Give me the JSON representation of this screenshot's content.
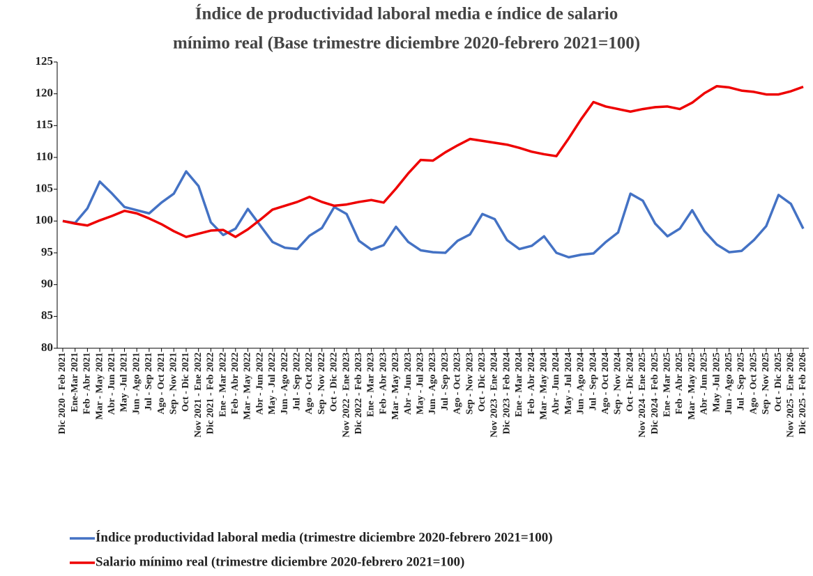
{
  "chart_data": {
    "type": "line",
    "title": [
      "Índice de productividad laboral media e índice de salario",
      "mínimo real (Base trimestre diciembre 2020-febrero 2021=100)"
    ],
    "categories": [
      "Dic 2020 - Feb 2021",
      "Ene-Mar 2021",
      "Feb - Abr 2021",
      "Mar - May 2021",
      "Abr - Jun 2021",
      "May -Jul 2021",
      "Jun - Ago 2021",
      "Jul - Sep 2021",
      "Ago - Oct 2021",
      "Sep - Nov 2021",
      "Oct - Dic 2021",
      "Nov 2021 - Ene 2022",
      "Dic 2021 - Feb 2022",
      "Ene - Mar 2022",
      "Feb - Abr 2022",
      "Mar - May 2022",
      "Abr - Jun 2022",
      "May - Jul 2022",
      "Jun - Ago 2022",
      "Jul - Sep 2022",
      "Ago - Oct 2022",
      "Sep - Nov 2022",
      "Oct - Dic 2022",
      "Nov 2022 - Ene 2023",
      "Dic 2022 - Feb 2023",
      "Ene - Mar 2023",
      "Feb - Abr 2023",
      "Mar - May 2023",
      "Abr - Jun 2023",
      "May - Jul 2023",
      "Jun - Ago 2023",
      "Jul - Sep 2023",
      "Ago - Oct 2023",
      "Sep - Nov 2023",
      "Oct - Dic 2023",
      "Nov 2023 - Ene 2024",
      "Dic 2023 - Feb 2024",
      "Ene - Mar 2024",
      "Feb - Abr 2024",
      "Mar - May 2024",
      "Abr - Jun 2024",
      "May - Jul 2024",
      "Jun - Ago 2024",
      "Jul - Sep 2024",
      "Ago - Oct 2024",
      "Sep - Nov 2024",
      "Oct - Dic 2024",
      "Nov 2024 - Ene 2025",
      "Dic 2024 - Feb 2025",
      "Ene - Mar 2025",
      "Feb - Abr 2025",
      "Mar - May 2025",
      "Abr - Jun 2025",
      "May -Jul 2025",
      "Jun - Ago 2025",
      "Jul - Sep 2025",
      "Ago - Oct 2025",
      "Sep - Nov 2025",
      "Oct - Dic 2025",
      "Nov 2025 - Ene 2026",
      "Dic 2025 - Feb 2026"
    ],
    "series": [
      {
        "name": "Índice productividad laboral media (trimestre diciembre 2020-febrero 2021=100)",
        "color": "#4472c4",
        "values": [
          100,
          99.7,
          102,
          106.2,
          104.3,
          102.2,
          101.7,
          101.2,
          102.9,
          104.3,
          107.8,
          105.5,
          99.8,
          97.8,
          98.8,
          101.9,
          99.3,
          96.7,
          95.8,
          95.6,
          97.7,
          98.9,
          102.2,
          101.1,
          96.9,
          95.5,
          96.2,
          99.1,
          96.7,
          95.4,
          95.1,
          95.0,
          96.9,
          97.9,
          101.1,
          100.3,
          97.0,
          95.6,
          96.1,
          97.6,
          95.0,
          94.3,
          94.7,
          94.9,
          96.7,
          98.2,
          104.3,
          103.2,
          99.6,
          97.6,
          98.8,
          101.7,
          98.4,
          96.3,
          95.1,
          95.3,
          97.0,
          99.2,
          104.1,
          102.7,
          98.8
        ]
      },
      {
        "name": "Salario mínimo real (trimestre diciembre 2020-febrero 2021=100)",
        "color": "#ee0000",
        "values": [
          100,
          99.6,
          99.3,
          100.1,
          100.8,
          101.6,
          101.2,
          100.4,
          99.5,
          98.4,
          97.5,
          98.0,
          98.5,
          98.6,
          97.5,
          98.7,
          100.2,
          101.8,
          102.4,
          103.0,
          103.8,
          103.0,
          102.4,
          102.6,
          103.0,
          103.3,
          102.9,
          105.1,
          107.5,
          109.6,
          109.5,
          110.8,
          111.9,
          112.9,
          112.6,
          112.3,
          112.0,
          111.5,
          110.9,
          110.5,
          110.2,
          113.0,
          116.0,
          118.7,
          118.0,
          117.6,
          117.2,
          117.6,
          117.9,
          118.0,
          117.6,
          118.6,
          120.1,
          121.2,
          121.0,
          120.5,
          120.3,
          119.9,
          119.9,
          120.4,
          121.1
        ]
      }
    ],
    "ylim": [
      80,
      125
    ],
    "yticks": [
      80,
      85,
      90,
      95,
      100,
      105,
      110,
      115,
      120,
      125
    ]
  }
}
